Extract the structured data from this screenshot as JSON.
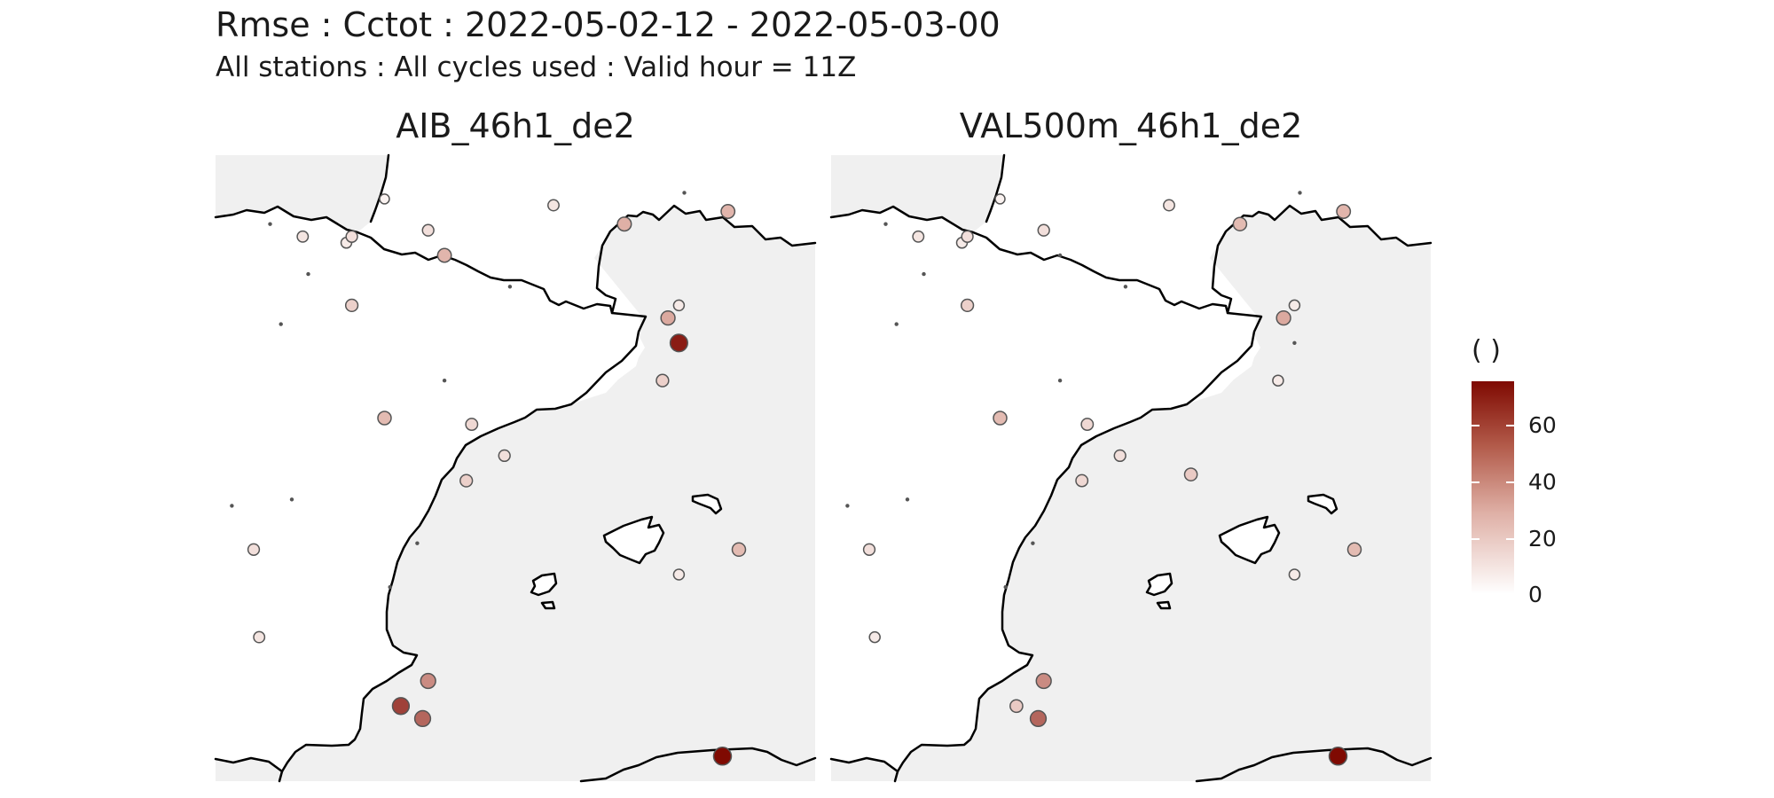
{
  "title": "Rmse : Cctot : 2022-05-02-12 - 2022-05-03-00",
  "subtitle": "All stations : All cycles used : Valid hour = 11Z",
  "panels": [
    {
      "name": "AIB_46h1_de2",
      "stations": [
        {
          "lon": 0.0,
          "lat": 43.4,
          "value": 0
        },
        {
          "lon": 0.6,
          "lat": 43.2,
          "value": 10
        },
        {
          "lon": 1.4,
          "lat": 43.1,
          "value": 8
        },
        {
          "lon": 1.5,
          "lat": 43.2,
          "value": 12
        },
        {
          "lon": 2.1,
          "lat": 43.8,
          "value": 5
        },
        {
          "lon": 2.9,
          "lat": 43.3,
          "value": 12
        },
        {
          "lon": 3.2,
          "lat": 42.9,
          "value": 28
        },
        {
          "lon": 4.4,
          "lat": 42.4,
          "value": 0
        },
        {
          "lon": 5.2,
          "lat": 43.7,
          "value": 10
        },
        {
          "lon": 7.6,
          "lat": 43.9,
          "value": 0
        },
        {
          "lon": 8.4,
          "lat": 43.6,
          "value": 28
        },
        {
          "lon": 7.5,
          "lat": 42.1,
          "value": 8
        },
        {
          "lon": 6.5,
          "lat": 43.4,
          "value": 30
        },
        {
          "lon": 0.7,
          "lat": 42.6,
          "value": 0
        },
        {
          "lon": 1.5,
          "lat": 42.1,
          "value": 18
        },
        {
          "lon": 0.2,
          "lat": 41.8,
          "value": 0
        },
        {
          "lon": 7.3,
          "lat": 41.9,
          "value": 32
        },
        {
          "lon": 7.5,
          "lat": 41.5,
          "value": 70
        },
        {
          "lon": 7.2,
          "lat": 40.9,
          "value": 18
        },
        {
          "lon": 3.2,
          "lat": 40.9,
          "value": 0
        },
        {
          "lon": 2.1,
          "lat": 40.3,
          "value": 26
        },
        {
          "lon": 3.7,
          "lat": 40.2,
          "value": 15
        },
        {
          "lon": 4.3,
          "lat": 39.7,
          "value": 12
        },
        {
          "lon": 3.6,
          "lat": 39.3,
          "value": 18
        },
        {
          "lon": -0.7,
          "lat": 38.9,
          "value": 0
        },
        {
          "lon": 0.4,
          "lat": 39.0,
          "value": 0
        },
        {
          "lon": -0.3,
          "lat": 38.2,
          "value": 12
        },
        {
          "lon": 2.7,
          "lat": 38.3,
          "value": 0
        },
        {
          "lon": 8.6,
          "lat": 38.2,
          "value": 26
        },
        {
          "lon": 7.5,
          "lat": 37.8,
          "value": 8
        },
        {
          "lon": 2.2,
          "lat": 37.6,
          "value": 0
        },
        {
          "lon": -0.2,
          "lat": 36.8,
          "value": 10
        },
        {
          "lon": 2.9,
          "lat": 36.1,
          "value": 40
        },
        {
          "lon": 2.4,
          "lat": 35.7,
          "value": 60
        },
        {
          "lon": 2.8,
          "lat": 35.5,
          "value": 50
        },
        {
          "lon": 8.3,
          "lat": 34.9,
          "value": 75
        }
      ]
    },
    {
      "name": "VAL500m_46h1_de2",
      "stations": [
        {
          "lon": 0.0,
          "lat": 43.4,
          "value": 0
        },
        {
          "lon": 0.6,
          "lat": 43.2,
          "value": 10
        },
        {
          "lon": 1.4,
          "lat": 43.1,
          "value": 8
        },
        {
          "lon": 1.5,
          "lat": 43.2,
          "value": 12
        },
        {
          "lon": 2.1,
          "lat": 43.8,
          "value": 5
        },
        {
          "lon": 2.9,
          "lat": 43.3,
          "value": 12
        },
        {
          "lon": 3.2,
          "lat": 42.9,
          "value": 0
        },
        {
          "lon": 4.4,
          "lat": 42.4,
          "value": 0
        },
        {
          "lon": 5.2,
          "lat": 43.7,
          "value": 10
        },
        {
          "lon": 7.6,
          "lat": 43.9,
          "value": 0
        },
        {
          "lon": 8.4,
          "lat": 43.6,
          "value": 28
        },
        {
          "lon": 7.5,
          "lat": 42.1,
          "value": 8
        },
        {
          "lon": 6.5,
          "lat": 43.4,
          "value": 26
        },
        {
          "lon": 0.7,
          "lat": 42.6,
          "value": 0
        },
        {
          "lon": 1.5,
          "lat": 42.1,
          "value": 18
        },
        {
          "lon": 0.2,
          "lat": 41.8,
          "value": 0
        },
        {
          "lon": 7.3,
          "lat": 41.9,
          "value": 32
        },
        {
          "lon": 7.5,
          "lat": 41.5,
          "value": 0
        },
        {
          "lon": 7.2,
          "lat": 40.9,
          "value": 8
        },
        {
          "lon": 3.2,
          "lat": 40.9,
          "value": 0
        },
        {
          "lon": 2.1,
          "lat": 40.3,
          "value": 26
        },
        {
          "lon": 3.7,
          "lat": 40.2,
          "value": 15
        },
        {
          "lon": 4.3,
          "lat": 39.7,
          "value": 12
        },
        {
          "lon": 5.6,
          "lat": 39.4,
          "value": 20
        },
        {
          "lon": 3.6,
          "lat": 39.3,
          "value": 15
        },
        {
          "lon": -0.7,
          "lat": 38.9,
          "value": 0
        },
        {
          "lon": 0.4,
          "lat": 39.0,
          "value": 0
        },
        {
          "lon": -0.3,
          "lat": 38.2,
          "value": 12
        },
        {
          "lon": 2.7,
          "lat": 38.3,
          "value": 0
        },
        {
          "lon": 8.6,
          "lat": 38.2,
          "value": 26
        },
        {
          "lon": 7.5,
          "lat": 37.8,
          "value": 8
        },
        {
          "lon": 2.2,
          "lat": 37.6,
          "value": 0
        },
        {
          "lon": -0.2,
          "lat": 36.8,
          "value": 8
        },
        {
          "lon": 2.9,
          "lat": 36.1,
          "value": 40
        },
        {
          "lon": 2.4,
          "lat": 35.7,
          "value": 20
        },
        {
          "lon": 2.8,
          "lat": 35.5,
          "value": 50
        },
        {
          "lon": 8.3,
          "lat": 34.9,
          "value": 75
        }
      ]
    }
  ],
  "legend": {
    "title": "( )",
    "ticks": [
      "60",
      "40",
      "20",
      "0"
    ],
    "tick_values": [
      60,
      40,
      20,
      0
    ],
    "min": 0,
    "max": 75,
    "colors": {
      "low": "#ffffff",
      "mid": "#dfb0a6",
      "high": "#7f0a02"
    }
  },
  "map": {
    "extent": {
      "lon": [
        -1.0,
        10.0
      ],
      "lat": [
        34.5,
        44.5
      ]
    },
    "land_color": "#ffffff",
    "sea_color": "#f0f0f0",
    "coast_color": "#000000"
  }
}
